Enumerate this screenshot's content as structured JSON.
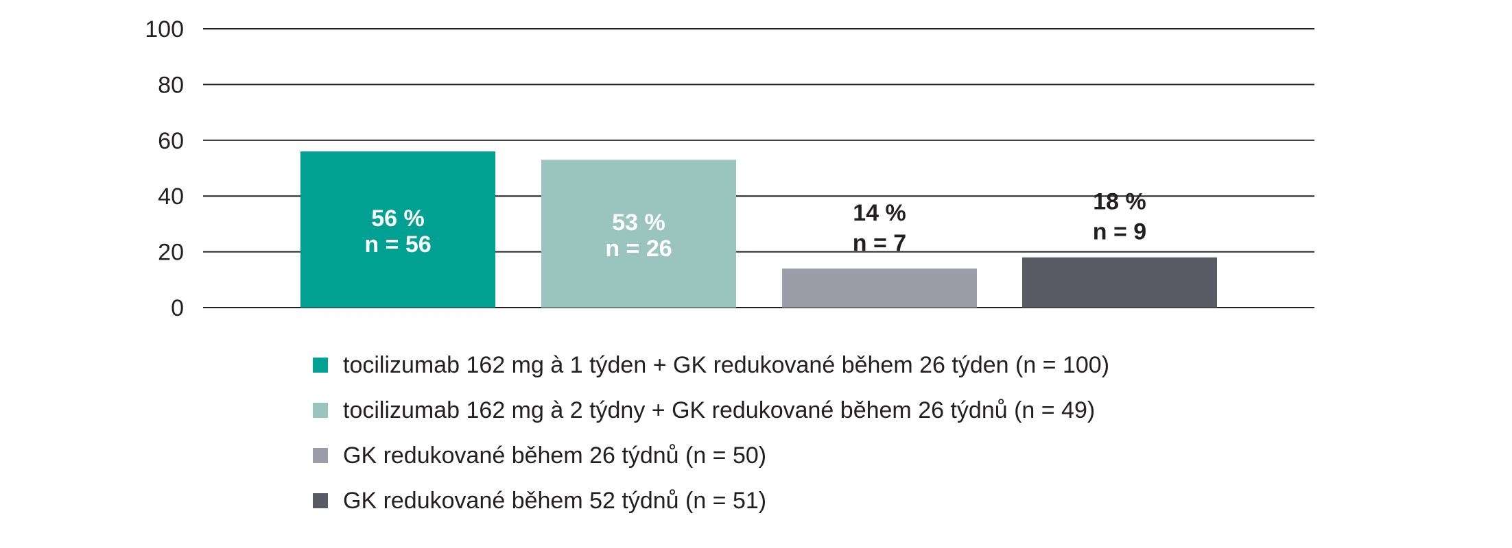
{
  "chart_data": {
    "type": "bar",
    "ylim": [
      0,
      100
    ],
    "yticks": [
      0,
      20,
      40,
      60,
      80,
      100
    ],
    "grid": true,
    "legend_position": "bottom",
    "series": [
      {
        "name": "tocilizumab 162 mg à 1 týden + GK redukované během 26 týden (n = 100)",
        "value": 56,
        "label_line1": "56 %",
        "label_line2": "n = 56",
        "color": "#00a192",
        "label_color": "#ffffff",
        "label_inside": true
      },
      {
        "name": "tocilizumab 162 mg à 2 týdny + GK redukované během 26 týdnů (n = 49)",
        "value": 53,
        "label_line1": "53 %",
        "label_line2": "n = 26",
        "color": "#9ac5bf",
        "label_color": "#ffffff",
        "label_inside": true
      },
      {
        "name": "GK redukované během 26 týdnů (n = 50)",
        "value": 14,
        "label_line1": "14 %",
        "label_line2": "n = 7",
        "color": "#9b9ea8",
        "label_color": "#231f20",
        "label_inside": false
      },
      {
        "name": "GK redukované během 52 týdnů (n = 51)",
        "value": 18,
        "label_line1": "18 %",
        "label_line2": "n = 9",
        "color": "#585b63",
        "label_color": "#231f20",
        "label_inside": false
      }
    ]
  }
}
